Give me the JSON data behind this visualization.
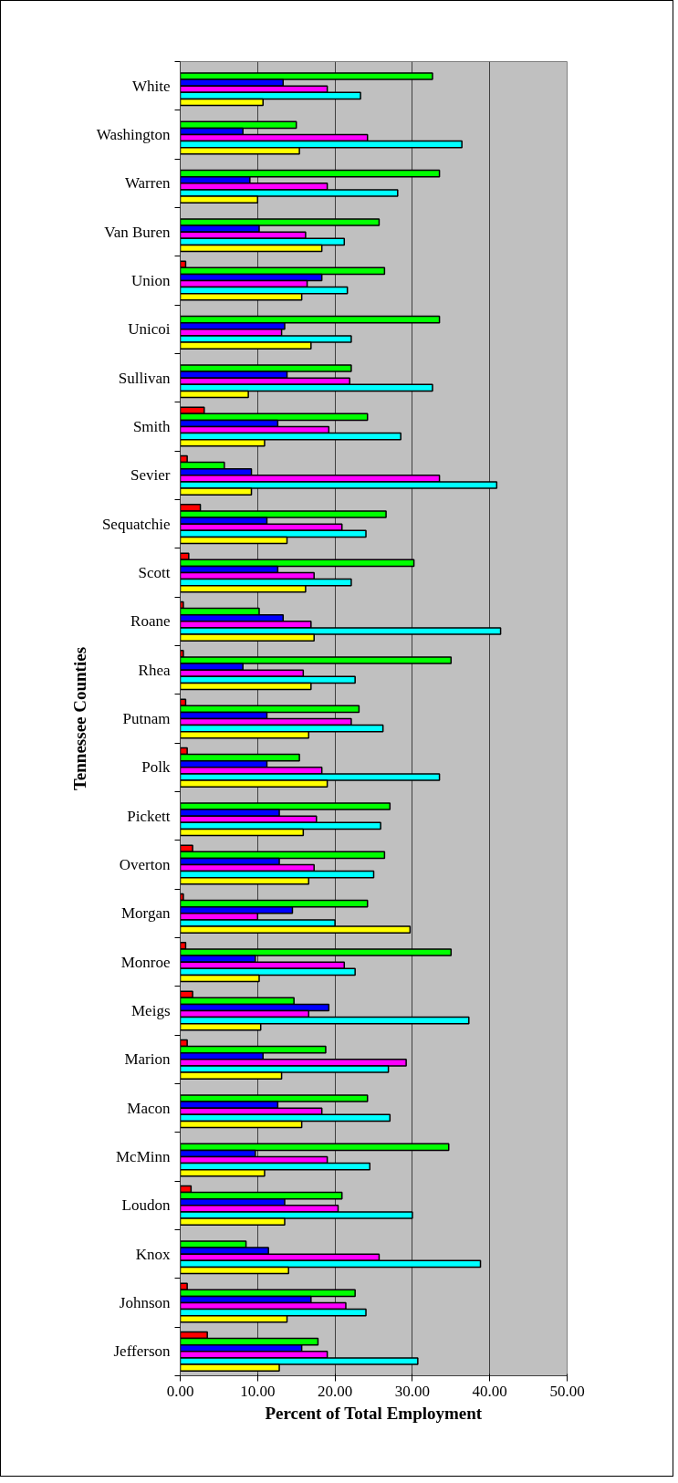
{
  "chart_data": {
    "type": "bar",
    "orientation": "horizontal",
    "xlabel": "Percent of Total Employment",
    "ylabel": "Tennessee Counties",
    "categories": [
      "White",
      "Washington",
      "Warren",
      "Van Buren",
      "Union",
      "Unicoi",
      "Sullivan",
      "Smith",
      "Sevier",
      "Sequatchie",
      "Scott",
      "Roane",
      "Rhea",
      "Putnam",
      "Polk",
      "Pickett",
      "Overton",
      "Morgan",
      "Monroe",
      "Meigs",
      "Marion",
      "Macon",
      "McMinn",
      "Loudon",
      "Knox",
      "Johnson",
      "Jefferson"
    ],
    "series": [
      {
        "color": "#ff0000",
        "values": [
          null,
          null,
          null,
          null,
          0.7,
          null,
          null,
          3.1,
          0.9,
          2.6,
          1.1,
          0.4,
          0.4,
          0.7,
          0.9,
          null,
          1.6,
          0.4,
          0.7,
          1.6,
          0.9,
          null,
          null,
          1.4,
          null,
          0.9,
          3.5
        ]
      },
      {
        "color": "#00ff00",
        "values": [
          32.6,
          15.0,
          33.5,
          25.7,
          26.4,
          33.5,
          22.1,
          24.2,
          5.7,
          26.6,
          30.2,
          10.2,
          35.0,
          23.1,
          15.4,
          27.1,
          26.4,
          24.2,
          35.0,
          14.7,
          18.8,
          24.2,
          34.7,
          20.9,
          8.5,
          22.6,
          17.8
        ]
      },
      {
        "color": "#0000ff",
        "values": [
          13.3,
          8.1,
          9.0,
          10.2,
          18.3,
          13.5,
          13.8,
          12.6,
          9.2,
          11.2,
          12.6,
          13.3,
          8.1,
          11.2,
          11.2,
          12.8,
          12.8,
          14.5,
          9.7,
          19.2,
          10.7,
          12.6,
          9.7,
          13.5,
          11.4,
          16.9,
          15.7
        ]
      },
      {
        "color": "#ff00ff",
        "values": [
          19.0,
          24.2,
          19.0,
          16.2,
          16.4,
          13.1,
          21.9,
          19.2,
          33.5,
          20.9,
          17.3,
          16.9,
          15.9,
          22.1,
          18.3,
          17.6,
          17.3,
          10.0,
          21.2,
          16.6,
          29.2,
          18.3,
          19.0,
          20.4,
          25.7,
          21.4,
          19.0
        ]
      },
      {
        "color": "#00ffff",
        "values": [
          23.3,
          36.4,
          28.1,
          21.2,
          21.6,
          22.1,
          32.6,
          28.5,
          40.9,
          24.0,
          22.1,
          41.4,
          22.6,
          26.2,
          33.5,
          25.9,
          25.0,
          20.0,
          22.6,
          37.3,
          26.9,
          27.1,
          24.5,
          30.0,
          38.8,
          24.0,
          30.7
        ]
      },
      {
        "color": "#ffff00",
        "values": [
          10.7,
          15.4,
          10.0,
          18.3,
          15.7,
          16.9,
          8.8,
          10.9,
          9.2,
          13.8,
          16.2,
          17.3,
          16.9,
          16.6,
          19.0,
          15.9,
          16.6,
          29.7,
          10.2,
          10.4,
          13.1,
          15.7,
          10.9,
          13.5,
          14.0,
          13.8,
          12.8
        ]
      }
    ],
    "xlim": [
      0,
      50
    ],
    "xticks": [
      {
        "value": 0,
        "label": "0.00"
      },
      {
        "value": 10,
        "label": "10.00"
      },
      {
        "value": 20,
        "label": "20.00"
      },
      {
        "value": 30,
        "label": "30.00"
      },
      {
        "value": 40,
        "label": "40.00"
      },
      {
        "value": 50,
        "label": "50.00"
      }
    ],
    "grid": "x"
  }
}
